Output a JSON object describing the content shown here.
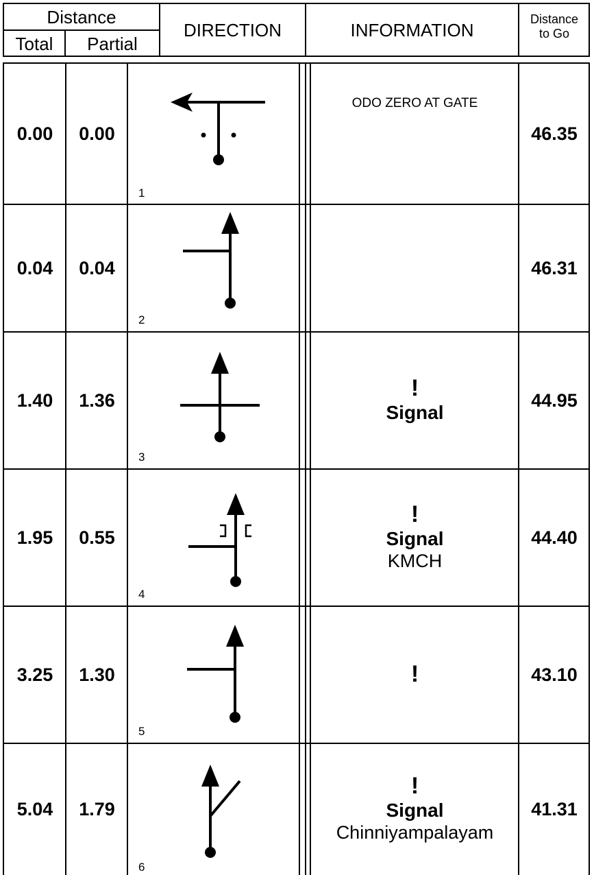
{
  "header": {
    "distance": "Distance",
    "total": "Total",
    "partial": "Partial",
    "direction": "DIRECTION",
    "information": "INFORMATION",
    "distance_to_go_line1": "Distance",
    "distance_to_go_line2": "to Go"
  },
  "rows": [
    {
      "number": "1",
      "total": "0.00",
      "partial": "0.00",
      "info_note": "ODO ZERO AT GATE",
      "info_bang": "",
      "info_signal": "",
      "info_place": "",
      "to_go": "46.35",
      "icon": "t-junction-turn-left-icon"
    },
    {
      "number": "2",
      "total": "0.04",
      "partial": "0.04",
      "info_note": "",
      "info_bang": "",
      "info_signal": "",
      "info_place": "",
      "to_go": "46.31",
      "icon": "straight-past-left-junction-icon"
    },
    {
      "number": "3",
      "total": "1.40",
      "partial": "1.36",
      "info_note": "",
      "info_bang": "!",
      "info_signal": "Signal",
      "info_place": "",
      "to_go": "44.95",
      "icon": "crossroads-straight-icon"
    },
    {
      "number": "4",
      "total": "1.95",
      "partial": "0.55",
      "info_note": "",
      "info_bang": "!",
      "info_signal": "Signal",
      "info_place": "KMCH",
      "to_go": "44.40",
      "icon": "straight-bridge-left-junction-icon"
    },
    {
      "number": "5",
      "total": "3.25",
      "partial": "1.30",
      "info_note": "",
      "info_bang": "!",
      "info_signal": "",
      "info_place": "",
      "to_go": "43.10",
      "icon": "straight-past-left-junction-icon"
    },
    {
      "number": "6",
      "total": "5.04",
      "partial": "1.79",
      "info_note": "",
      "info_bang": "!",
      "info_signal": "Signal",
      "info_place": "Chinniyampalayam",
      "to_go": "41.31",
      "icon": "fork-keep-left-icon"
    }
  ]
}
